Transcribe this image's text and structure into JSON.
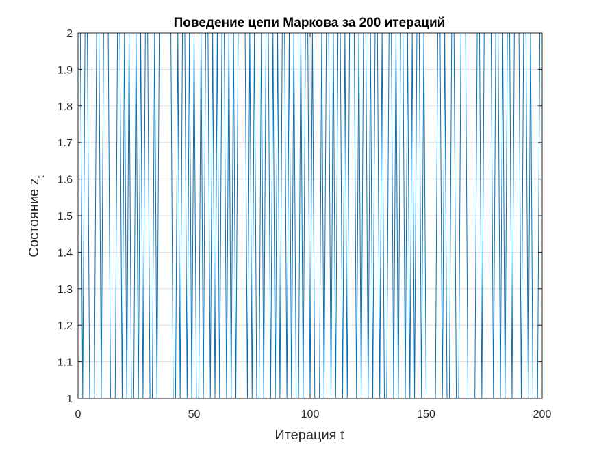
{
  "chart_data": {
    "type": "line",
    "title": "Поведение цепи Маркова за 200 итераций",
    "xlabel": "Итерация t",
    "ylabel_main": "Состояние z",
    "ylabel_subscript": "t",
    "xlim": [
      0,
      200
    ],
    "ylim": [
      1,
      2
    ],
    "xticks": [
      0,
      50,
      100,
      150,
      200
    ],
    "yticks": [
      1,
      1.1,
      1.2,
      1.3,
      1.4,
      1.5,
      1.6,
      1.7,
      1.8,
      1.9,
      2
    ],
    "grid": true,
    "line_color": "#0072bd",
    "series": [
      {
        "x": [
          1,
          2,
          3,
          4,
          5,
          6,
          7,
          8,
          9,
          10,
          11,
          12,
          13,
          14,
          15,
          16,
          17,
          18,
          19,
          20,
          21,
          22,
          23,
          24,
          25,
          26,
          27,
          28,
          29,
          30,
          31,
          32,
          33,
          34,
          35,
          36,
          37,
          38,
          39,
          40,
          41,
          42,
          43,
          44,
          45,
          46,
          47,
          48,
          49,
          50,
          51,
          52,
          53,
          54,
          55,
          56,
          57,
          58,
          59,
          60,
          61,
          62,
          63,
          64,
          65,
          66,
          67,
          68,
          69,
          70,
          71,
          72,
          73,
          74,
          75,
          76,
          77,
          78,
          79,
          80,
          81,
          82,
          83,
          84,
          85,
          86,
          87,
          88,
          89,
          90,
          91,
          92,
          93,
          94,
          95,
          96,
          97,
          98,
          99,
          100,
          101,
          102,
          103,
          104,
          105,
          106,
          107,
          108,
          109,
          110,
          111,
          112,
          113,
          114,
          115,
          116,
          117,
          118,
          119,
          120,
          121,
          122,
          123,
          124,
          125,
          126,
          127,
          128,
          129,
          130,
          131,
          132,
          133,
          134,
          135,
          136,
          137,
          138,
          139,
          140,
          141,
          142,
          143,
          144,
          145,
          146,
          147,
          148,
          149,
          150,
          151,
          152,
          153,
          154,
          155,
          156,
          157,
          158,
          159,
          160,
          161,
          162,
          163,
          164,
          165,
          166,
          167,
          168,
          169,
          170,
          171,
          172,
          173,
          174,
          175,
          176,
          177,
          178,
          179,
          180,
          181,
          182,
          183,
          184,
          185,
          186,
          187,
          188,
          189,
          190,
          191,
          192,
          193,
          194,
          195,
          196,
          197,
          198,
          199,
          200
        ],
        "values": [
          2,
          1,
          2,
          2,
          1,
          1,
          1,
          2,
          2,
          1,
          2,
          2,
          2,
          1,
          1,
          1,
          2,
          2,
          1,
          2,
          1,
          2,
          1,
          1,
          2,
          1,
          2,
          1,
          2,
          2,
          1,
          1,
          2,
          1,
          2,
          2,
          2,
          2,
          2,
          2,
          1,
          1,
          2,
          1,
          2,
          2,
          1,
          2,
          1,
          2,
          1,
          1,
          2,
          1,
          2,
          2,
          1,
          2,
          1,
          2,
          1,
          2,
          2,
          1,
          2,
          1,
          2,
          1,
          2,
          2,
          2,
          2,
          1,
          2,
          1,
          2,
          1,
          1,
          2,
          1,
          2,
          2,
          1,
          2,
          1,
          2,
          1,
          2,
          2,
          1,
          2,
          1,
          2,
          1,
          1,
          2,
          1,
          2,
          2,
          1,
          2,
          1,
          1,
          1,
          2,
          1,
          2,
          2,
          1,
          2,
          1,
          2,
          2,
          1,
          2,
          1,
          2,
          2,
          2,
          1,
          2,
          1,
          2,
          2,
          1,
          2,
          1,
          2,
          2,
          1,
          2,
          1,
          1,
          2,
          2,
          1,
          2,
          1,
          2,
          2,
          1,
          2,
          1,
          2,
          1,
          2,
          2,
          1,
          2,
          1,
          1,
          1,
          1,
          1,
          2,
          2,
          1,
          2,
          1,
          1,
          2,
          2,
          1,
          1,
          2,
          2,
          2,
          1,
          1,
          1,
          1,
          2,
          2,
          1,
          2,
          2,
          2,
          2,
          1,
          2,
          2,
          1,
          2,
          1,
          2,
          2,
          1,
          2,
          2,
          2,
          1,
          2,
          2,
          1,
          2,
          1,
          1,
          1,
          2,
          2
        ]
      }
    ]
  }
}
